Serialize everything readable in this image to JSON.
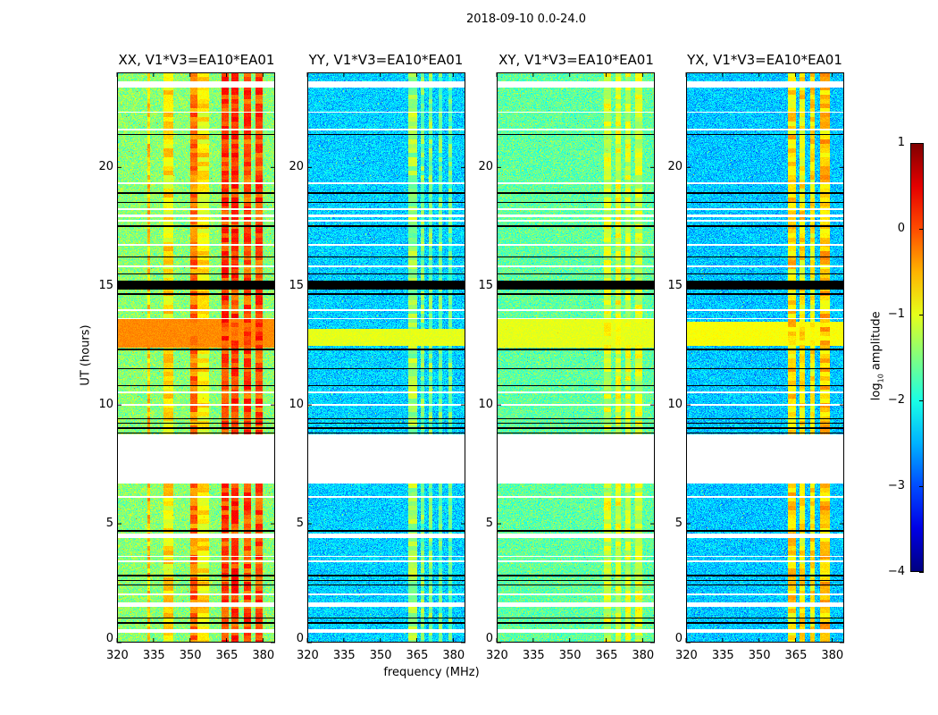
{
  "chart_data": {
    "type": "heatmap",
    "title": "2018-09-10 0.0-24.0",
    "xlabel": "frequency (MHz)",
    "ylabel": "UT (hours)",
    "xlim": [
      320,
      385
    ],
    "ylim": [
      0,
      24
    ],
    "xticks": [
      320,
      335,
      350,
      365,
      380
    ],
    "yticks": [
      0,
      5,
      10,
      15,
      20
    ],
    "colorbar": {
      "label_parts": [
        "log",
        "10",
        " amplitude"
      ],
      "colormap": "jet",
      "range": [
        -4,
        1
      ],
      "ticks": [
        1,
        0,
        -1,
        -2,
        -3,
        -4
      ],
      "tick_labels": [
        "1",
        "0",
        "−1",
        "−2",
        "−3",
        "−4"
      ]
    },
    "flagged_white_hours": [
      [
        23.35,
        23.62
      ],
      [
        22.3,
        22.36
      ],
      [
        21.55,
        21.62
      ],
      [
        19.3,
        19.36
      ],
      [
        18.2,
        18.3
      ],
      [
        17.9,
        18.0
      ],
      [
        17.7,
        17.78
      ],
      [
        16.7,
        16.76
      ],
      [
        15.8,
        15.86
      ],
      [
        13.95,
        14.05
      ],
      [
        13.6,
        13.65
      ],
      [
        10.5,
        10.56
      ],
      [
        9.95,
        10.05
      ],
      [
        6.7,
        8.75
      ],
      [
        6.1,
        6.16
      ],
      [
        4.4,
        4.6
      ],
      [
        3.6,
        3.65
      ],
      [
        3.4,
        3.45
      ],
      [
        2.0,
        2.06
      ],
      [
        1.5,
        1.68
      ],
      [
        0.4,
        0.58
      ]
    ],
    "flagged_black_hours": [
      [
        21.35,
        21.42
      ],
      [
        18.9,
        18.95
      ],
      [
        18.5,
        18.55
      ],
      [
        17.5,
        17.55
      ],
      [
        16.2,
        16.25
      ],
      [
        15.5,
        15.55
      ],
      [
        14.85,
        15.25
      ],
      [
        14.65,
        14.7
      ],
      [
        12.3,
        12.37
      ],
      [
        11.5,
        11.55
      ],
      [
        10.8,
        10.85
      ],
      [
        9.4,
        9.45
      ],
      [
        9.2,
        9.25
      ],
      [
        9.0,
        9.05
      ],
      [
        8.8,
        8.85
      ],
      [
        4.68,
        4.75
      ],
      [
        2.8,
        2.85
      ],
      [
        2.6,
        2.65
      ],
      [
        2.4,
        2.45
      ],
      [
        1.0,
        1.05
      ],
      [
        0.8,
        0.85
      ]
    ],
    "panels": [
      {
        "title": "XX, V1*V3=EA10*EA01",
        "background": -1.45,
        "bands": [
          [
            332.5,
            333.5,
            -0.6
          ],
          [
            339,
            343,
            -0.8
          ],
          [
            350,
            353,
            -0.2
          ],
          [
            353,
            358,
            -0.8
          ],
          [
            363,
            366,
            0.05
          ],
          [
            367,
            370,
            0.1
          ],
          [
            372,
            375,
            0.0
          ],
          [
            377,
            380,
            0.0
          ]
        ],
        "rows": [
          [
            12.4,
            13.6,
            -0.3
          ]
        ]
      },
      {
        "title": "YY, V1*V3=EA10*EA01",
        "background": -2.35,
        "bands": [
          [
            361.5,
            365,
            -1.35
          ],
          [
            366.5,
            368,
            -1.5
          ],
          [
            370,
            371.5,
            -1.5
          ],
          [
            374,
            375.5,
            -1.6
          ],
          [
            378,
            379.5,
            -1.6
          ]
        ],
        "rows": [
          [
            12.5,
            13.2,
            -1.0
          ]
        ]
      },
      {
        "title": "XY, V1*V3=EA10*EA01",
        "background": -1.65,
        "bands": [
          [
            364,
            367,
            -1.1
          ],
          [
            369,
            371,
            -1.0
          ],
          [
            373,
            375,
            -1.1
          ],
          [
            377,
            380,
            -1.1
          ]
        ],
        "rows": [
          [
            12.4,
            13.6,
            -1.0
          ]
        ]
      },
      {
        "title": "YX, V1*V3=EA10*EA01",
        "background": -2.4,
        "bands": [
          [
            362,
            365,
            -0.7
          ],
          [
            366.5,
            369,
            -0.8
          ],
          [
            371,
            373,
            -0.8
          ],
          [
            375,
            379,
            -0.6
          ]
        ],
        "rows": [
          [
            12.5,
            13.5,
            -0.9
          ]
        ]
      }
    ]
  }
}
